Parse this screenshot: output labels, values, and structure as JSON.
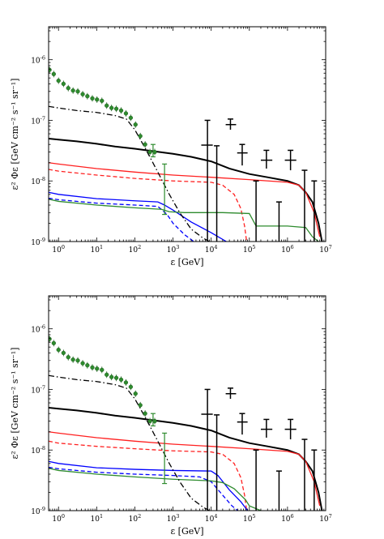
{
  "chart_data": [
    {
      "type": "line",
      "panel": "top",
      "title": "",
      "xlabel": "ε  [GeV]",
      "ylabel": "ε² Φε  [GeV cm⁻² s⁻¹ sr⁻¹]",
      "xscale": "log",
      "yscale": "log",
      "xlim": [
        0.55,
        10000000.0
      ],
      "ylim": [
        1e-09,
        3.5e-06
      ],
      "xticks": [
        "10^0",
        "10^1",
        "10^2",
        "10^3",
        "10^4",
        "10^5",
        "10^6",
        "10^7"
      ],
      "yticks": [
        "10^-9",
        "10^-8",
        "10^-7",
        "10^-6"
      ],
      "grid": false,
      "legend": "none",
      "series": [
        {
          "color": "#000000",
          "style": "solid",
          "x": [
            0.55,
            1,
            3,
            10,
            30,
            100,
            300,
            1000,
            3000,
            10000,
            30000,
            100000,
            300000,
            1000000,
            2000000,
            3000000,
            4500000,
            6500000,
            8000000
          ],
          "y": [
            5e-08,
            4.8e-08,
            4.5e-08,
            4.1e-08,
            3.7e-08,
            3.4e-08,
            3.1e-08,
            2.8e-08,
            2.5e-08,
            2.1e-08,
            1.6e-08,
            1.3e-08,
            1.15e-08,
            1e-08,
            8.5e-09,
            6.5e-09,
            4.5e-09,
            2e-09,
            1e-09
          ]
        },
        {
          "color": "#ff2020",
          "style": "solid",
          "x": [
            0.55,
            1,
            10,
            100,
            1000,
            10000,
            100000,
            1000000,
            2000000,
            3000000,
            5000000,
            7000000
          ],
          "y": [
            2e-08,
            1.9e-08,
            1.6e-08,
            1.4e-08,
            1.25e-08,
            1.15e-08,
            1.05e-08,
            9.5e-09,
            8.5e-09,
            6.5e-09,
            3e-09,
            1.2e-09
          ]
        },
        {
          "color": "#ff2020",
          "style": "dashed",
          "x": [
            0.55,
            1,
            10,
            100,
            1000,
            10000,
            20000,
            40000,
            60000,
            75000,
            85000
          ],
          "y": [
            1.55e-08,
            1.45e-08,
            1.25e-08,
            1.1e-08,
            1e-08,
            9.5e-09,
            8.5e-09,
            6e-09,
            3.5e-09,
            1.8e-09,
            1e-09
          ]
        },
        {
          "color": "#0000ff",
          "style": "solid",
          "x": [
            0.55,
            1,
            10,
            100,
            400,
            600,
            1000,
            3000,
            10000,
            25000
          ],
          "y": [
            6.5e-09,
            6e-09,
            5.1e-09,
            4.7e-09,
            4.5e-09,
            4e-09,
            3.3e-09,
            2.1e-09,
            1.4e-09,
            1e-09
          ]
        },
        {
          "color": "#0000ff",
          "style": "dashed",
          "x": [
            0.55,
            1,
            10,
            100,
            400,
            700,
            1000,
            2000,
            3500
          ],
          "y": [
            5.2e-09,
            4.9e-09,
            4.3e-09,
            4e-09,
            3.8e-09,
            2.8e-09,
            2e-09,
            1.3e-09,
            1e-09
          ]
        },
        {
          "color": "#2e8b2e",
          "style": "solid",
          "x": [
            0.55,
            1,
            10,
            100,
            500,
            800,
            2000,
            20000,
            100000,
            150000,
            1000000,
            3000000,
            4500000,
            6500000
          ],
          "y": [
            5e-09,
            4.6e-09,
            4e-09,
            3.6e-09,
            3.4e-09,
            3.1e-09,
            3e-09,
            3e-09,
            2.9e-09,
            1.8e-09,
            1.8e-09,
            1.7e-09,
            1.2e-09,
            1e-09
          ]
        },
        {
          "color": "#000000",
          "style": "dashdot",
          "x": [
            0.55,
            1,
            3,
            10,
            30,
            60,
            100,
            200,
            400,
            800,
            1500,
            3000,
            6000,
            9000
          ],
          "y": [
            1.7e-07,
            1.6e-07,
            1.45e-07,
            1.35e-07,
            1.2e-07,
            1.05e-07,
            7e-08,
            3.2e-08,
            1.4e-08,
            6e-09,
            3e-09,
            1.6e-09,
            1.15e-09,
            1e-09
          ]
        }
      ],
      "points_green": {
        "color": "#2e8b2e",
        "x": [
          0.58,
          0.75,
          1.0,
          1.35,
          1.8,
          2.4,
          3.2,
          4.3,
          5.7,
          7.7,
          10.2,
          13.7,
          18.3,
          24.5,
          32.7,
          43.7,
          58.4,
          78,
          104,
          139,
          186,
          249,
          332
        ],
        "y": [
          6.8e-07,
          5.8e-07,
          4.5e-07,
          4e-07,
          3.4e-07,
          3.1e-07,
          3e-07,
          2.7e-07,
          2.5e-07,
          2.3e-07,
          2.2e-07,
          2.1e-07,
          1.75e-07,
          1.6e-07,
          1.55e-07,
          1.45e-07,
          1.3e-07,
          1.1e-07,
          8.5e-08,
          5.5e-08,
          4e-08,
          3e-08,
          3e-08
        ]
      },
      "green_errorbars": [
        {
          "x": 300,
          "y": 3.4e-08,
          "ylo": 2.5e-08,
          "yhi": 4e-08
        },
        {
          "x": 600,
          "y": 1.1e-08,
          "ylo": 2.8e-09,
          "yhi": 1.9e-08
        }
      ],
      "black_errorbars": [
        {
          "x": 8000,
          "y": 3.9e-08,
          "ylo": 1e-09,
          "yhi": 1e-07,
          "xlo": 5500,
          "xhi": 11000
        },
        {
          "x": 14000,
          "y": 1.6e-08,
          "ylo": 1e-09,
          "yhi": 3.8e-08
        },
        {
          "x": 32000,
          "y": 8.5e-08,
          "ylo": 7e-08,
          "yhi": 1.05e-07,
          "xlo": 24000,
          "xhi": 45000
        },
        {
          "x": 65000,
          "y": 2.9e-08,
          "ylo": 1.8e-08,
          "yhi": 4e-08,
          "xlo": 48000,
          "xhi": 90000
        },
        {
          "x": 150000,
          "y": 1e-08,
          "ylo": 1e-09
        },
        {
          "x": 280000,
          "y": 2.2e-08,
          "ylo": 1.6e-08,
          "yhi": 3.2e-08,
          "xlo": 200000,
          "xhi": 400000
        },
        {
          "x": 600000,
          "y": 4.5e-09,
          "ylo": 1e-09
        },
        {
          "x": 1200000,
          "y": 2.2e-08,
          "ylo": 1.5e-08,
          "yhi": 3.2e-08,
          "xlo": 850000,
          "xhi": 1700000
        },
        {
          "x": 2800000,
          "y": 1.5e-08,
          "ylo": 1e-09
        },
        {
          "x": 5000000,
          "y": 1e-08,
          "ylo": 1e-09
        }
      ]
    },
    {
      "type": "line",
      "panel": "bottom",
      "title": "",
      "xlabel": "ε  [GeV]",
      "ylabel": "ε² Φε  [GeV cm⁻² s⁻¹ sr⁻¹]",
      "xscale": "log",
      "yscale": "log",
      "xlim": [
        0.55,
        10000000.0
      ],
      "ylim": [
        1e-09,
        3.5e-06
      ],
      "xticks": [
        "10^0",
        "10^1",
        "10^2",
        "10^3",
        "10^4",
        "10^5",
        "10^6",
        "10^7"
      ],
      "yticks": [
        "10^-9",
        "10^-8",
        "10^-7",
        "10^-6"
      ],
      "grid": false,
      "legend": "none",
      "series": [
        {
          "color": "#000000",
          "style": "solid",
          "x": [
            0.55,
            1,
            3,
            10,
            30,
            100,
            300,
            1000,
            3000,
            10000,
            30000,
            100000,
            300000,
            1000000,
            2000000,
            3000000,
            4500000,
            6500000,
            8000000
          ],
          "y": [
            5e-08,
            4.8e-08,
            4.5e-08,
            4.1e-08,
            3.7e-08,
            3.4e-08,
            3.1e-08,
            2.8e-08,
            2.5e-08,
            2.1e-08,
            1.6e-08,
            1.3e-08,
            1.15e-08,
            1e-08,
            8.5e-09,
            6.5e-09,
            4.5e-09,
            2e-09,
            1e-09
          ]
        },
        {
          "color": "#ff2020",
          "style": "solid",
          "x": [
            0.55,
            1,
            10,
            100,
            1000,
            10000,
            100000,
            1000000,
            2000000,
            3000000,
            5000000,
            7000000
          ],
          "y": [
            2e-08,
            1.9e-08,
            1.6e-08,
            1.4e-08,
            1.25e-08,
            1.15e-08,
            1.05e-08,
            9.5e-09,
            8.5e-09,
            6.5e-09,
            3e-09,
            1.2e-09
          ]
        },
        {
          "color": "#ff2020",
          "style": "dashed",
          "x": [
            0.55,
            1,
            10,
            100,
            1000,
            10000,
            20000,
            40000,
            60000,
            75000,
            85000
          ],
          "y": [
            1.4e-08,
            1.3e-08,
            1.15e-08,
            1.05e-08,
            9.7e-09,
            9.3e-09,
            8.5e-09,
            6e-09,
            3.5e-09,
            1.8e-09,
            1e-09
          ]
        },
        {
          "color": "#0000ff",
          "style": "solid",
          "x": [
            0.55,
            1,
            10,
            100,
            1000,
            10000,
            15000,
            30000,
            60000,
            90000
          ],
          "y": [
            6.5e-09,
            6e-09,
            5.1e-09,
            4.8e-09,
            4.6e-09,
            4.5e-09,
            3.8e-09,
            2.2e-09,
            1.4e-09,
            1e-09
          ]
        },
        {
          "color": "#0000ff",
          "style": "dashed",
          "x": [
            0.55,
            1,
            10,
            100,
            1000,
            5000,
            10000,
            20000,
            35000,
            50000
          ],
          "y": [
            5.2e-09,
            4.9e-09,
            4.3e-09,
            4e-09,
            3.8e-09,
            3.6e-09,
            3e-09,
            1.8e-09,
            1.2e-09,
            1e-09
          ]
        },
        {
          "color": "#2e8b2e",
          "style": "solid",
          "x": [
            0.55,
            1,
            10,
            100,
            1000,
            10000,
            20000,
            40000,
            80000,
            100000,
            200000
          ],
          "y": [
            5e-09,
            4.6e-09,
            4e-09,
            3.6e-09,
            3.3e-09,
            3.1e-09,
            2.9e-09,
            2.3e-09,
            1.5e-09,
            1.2e-09,
            1e-09
          ]
        },
        {
          "color": "#000000",
          "style": "dashdot",
          "x": [
            0.55,
            1,
            3,
            10,
            30,
            60,
            100,
            200,
            400,
            800,
            1500,
            3000,
            6000,
            9000
          ],
          "y": [
            1.7e-07,
            1.6e-07,
            1.45e-07,
            1.35e-07,
            1.2e-07,
            1.05e-07,
            7e-08,
            3.2e-08,
            1.4e-08,
            6e-09,
            3e-09,
            1.6e-09,
            1.15e-09,
            1e-09
          ]
        }
      ],
      "points_green": {
        "color": "#2e8b2e",
        "x": [
          0.58,
          0.75,
          1.0,
          1.35,
          1.8,
          2.4,
          3.2,
          4.3,
          5.7,
          7.7,
          10.2,
          13.7,
          18.3,
          24.5,
          32.7,
          43.7,
          58.4,
          78,
          104,
          139,
          186,
          249,
          332
        ],
        "y": [
          6.8e-07,
          5.8e-07,
          4.5e-07,
          4e-07,
          3.4e-07,
          3.1e-07,
          3e-07,
          2.7e-07,
          2.5e-07,
          2.3e-07,
          2.2e-07,
          2.1e-07,
          1.75e-07,
          1.6e-07,
          1.55e-07,
          1.45e-07,
          1.3e-07,
          1.1e-07,
          8.5e-08,
          5.5e-08,
          4e-08,
          3e-08,
          3e-08
        ]
      },
      "green_errorbars": [
        {
          "x": 300,
          "y": 3.4e-08,
          "ylo": 2.5e-08,
          "yhi": 4e-08
        },
        {
          "x": 600,
          "y": 1.1e-08,
          "ylo": 2.8e-09,
          "yhi": 1.9e-08
        }
      ],
      "black_errorbars": [
        {
          "x": 8000,
          "y": 3.9e-08,
          "ylo": 1e-09,
          "yhi": 1e-07,
          "xlo": 5500,
          "xhi": 11000
        },
        {
          "x": 14000,
          "y": 1.6e-08,
          "ylo": 1e-09,
          "yhi": 3.8e-08
        },
        {
          "x": 32000,
          "y": 8.5e-08,
          "ylo": 7e-08,
          "yhi": 1.05e-07,
          "xlo": 24000,
          "xhi": 45000
        },
        {
          "x": 65000,
          "y": 2.9e-08,
          "ylo": 1.8e-08,
          "yhi": 4e-08,
          "xlo": 48000,
          "xhi": 90000
        },
        {
          "x": 150000,
          "y": 1e-08,
          "ylo": 1e-09
        },
        {
          "x": 280000,
          "y": 2.2e-08,
          "ylo": 1.6e-08,
          "yhi": 3.2e-08,
          "xlo": 200000,
          "xhi": 400000
        },
        {
          "x": 600000,
          "y": 4.5e-09,
          "ylo": 1e-09
        },
        {
          "x": 1200000,
          "y": 2.2e-08,
          "ylo": 1.5e-08,
          "yhi": 3.2e-08,
          "xlo": 850000,
          "xhi": 1700000
        },
        {
          "x": 2800000,
          "y": 1.5e-08,
          "ylo": 1e-09
        },
        {
          "x": 5000000,
          "y": 1e-08,
          "ylo": 1e-09
        }
      ]
    }
  ]
}
